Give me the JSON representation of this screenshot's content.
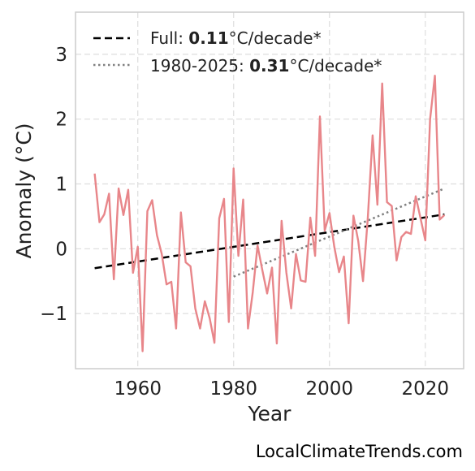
{
  "chart_data": {
    "type": "line",
    "xlabel": "Year",
    "ylabel": "Anomaly (°C)",
    "xlim": [
      1947,
      2028
    ],
    "ylim": [
      -1.85,
      3.65
    ],
    "xticks": [
      1960,
      1980,
      2000,
      2020
    ],
    "yticks": [
      -1,
      0,
      1,
      2,
      3
    ],
    "ytick_labels": [
      "−1",
      "0",
      "1",
      "2",
      "3"
    ],
    "grid": true,
    "legend_position": "top-left",
    "series": [
      {
        "color": "#e8868a",
        "x": [
          1951,
          1952,
          1953,
          1954,
          1955,
          1956,
          1957,
          1958,
          1959,
          1960,
          1961,
          1962,
          1963,
          1964,
          1965,
          1966,
          1967,
          1968,
          1969,
          1970,
          1971,
          1972,
          1973,
          1974,
          1975,
          1976,
          1977,
          1978,
          1979,
          1980,
          1981,
          1982,
          1983,
          1984,
          1985,
          1986,
          1987,
          1988,
          1989,
          1990,
          1991,
          1992,
          1993,
          1994,
          1995,
          1996,
          1997,
          1998,
          1999,
          2000,
          2001,
          2002,
          2003,
          2004,
          2005,
          2006,
          2007,
          2008,
          2009,
          2010,
          2011,
          2012,
          2013,
          2014,
          2015,
          2016,
          2017,
          2018,
          2019,
          2020,
          2021,
          2022,
          2023,
          2024
        ],
        "y": [
          1.16,
          0.41,
          0.53,
          0.85,
          -0.47,
          0.93,
          0.52,
          0.91,
          -0.37,
          0.03,
          -1.58,
          0.58,
          0.75,
          0.21,
          -0.08,
          -0.55,
          -0.51,
          -1.23,
          0.56,
          -0.21,
          -0.27,
          -0.92,
          -1.23,
          -0.81,
          -1.07,
          -1.45,
          0.47,
          0.77,
          -1.13,
          1.24,
          -0.11,
          0.76,
          -1.23,
          -0.67,
          0.05,
          -0.33,
          -0.69,
          -0.29,
          -1.46,
          0.43,
          -0.37,
          -0.92,
          -0.08,
          -0.49,
          -0.51,
          0.48,
          -0.11,
          2.04,
          0.28,
          0.55,
          0.03,
          -0.36,
          -0.12,
          -1.15,
          0.51,
          0.12,
          -0.5,
          0.48,
          1.75,
          0.68,
          2.55,
          0.72,
          0.66,
          -0.18,
          0.18,
          0.26,
          0.23,
          0.81,
          0.47,
          0.13,
          2.0,
          2.67,
          0.45,
          0.52
        ]
      }
    ],
    "trendlines": [
      {
        "label_prefix": "Full: ",
        "label_value": "0.11",
        "label_suffix": "°C/decade*",
        "x": [
          1951,
          2024
        ],
        "y": [
          -0.3,
          0.53
        ],
        "color": "#000000",
        "style": "dashed"
      },
      {
        "label_prefix": "1980-2025: ",
        "label_value": "0.31",
        "label_suffix": "°C/decade*",
        "x": [
          1980,
          2024
        ],
        "y": [
          -0.43,
          0.93
        ],
        "color": "#808080",
        "style": "dotted"
      }
    ]
  },
  "watermark": "LocalClimateTrends.com"
}
